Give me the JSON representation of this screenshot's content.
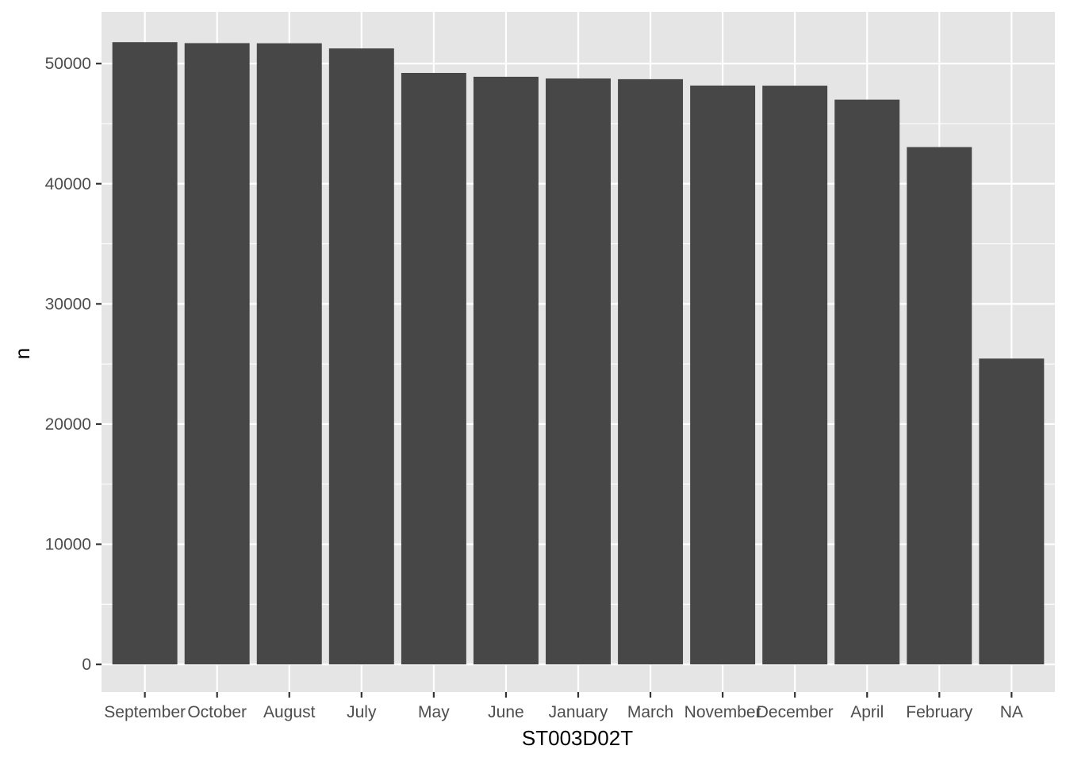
{
  "chart_data": {
    "type": "bar",
    "title": "",
    "xlabel": "ST003D02T",
    "ylabel": "n",
    "categories": [
      "September",
      "October",
      "August",
      "July",
      "May",
      "June",
      "January",
      "March",
      "November",
      "December",
      "April",
      "February",
      "NA"
    ],
    "values": [
      51780,
      51700,
      51690,
      51260,
      49220,
      48900,
      48760,
      48700,
      48170,
      48160,
      47000,
      43050,
      25450
    ],
    "ylim": [
      -2300,
      54300
    ],
    "yticks": [
      0,
      10000,
      20000,
      30000,
      40000,
      50000
    ],
    "grid": true,
    "legend": "none",
    "colors": {
      "panel": "#e5e5e5",
      "grid": "#ffffff",
      "bar": "#474747",
      "tick_text": "#4d4d4d",
      "tick_mark": "#333333"
    }
  }
}
